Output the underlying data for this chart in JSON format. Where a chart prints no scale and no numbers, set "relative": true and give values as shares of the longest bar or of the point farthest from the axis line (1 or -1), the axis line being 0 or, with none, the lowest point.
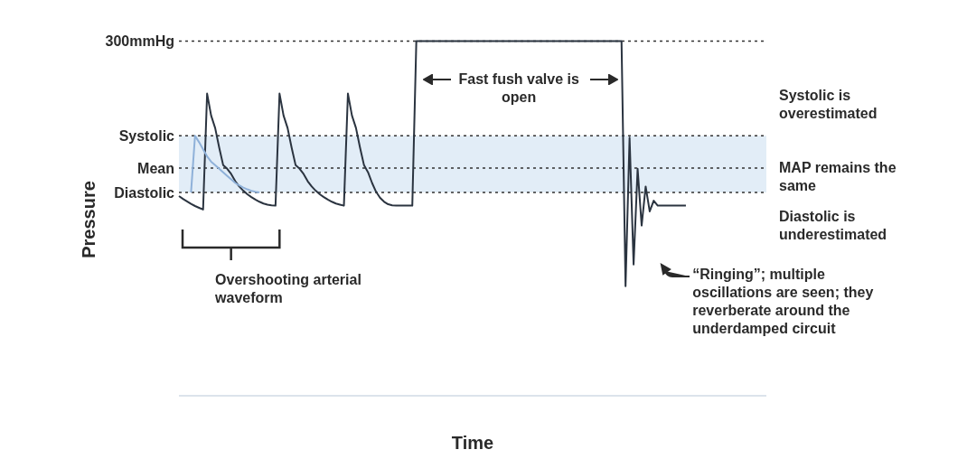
{
  "chart_data": {
    "type": "line",
    "relative": true,
    "xlabel": "Time",
    "ylabel": "Pressure",
    "marker": "none",
    "line_style": "solid",
    "grid": false,
    "legend": false,
    "categories": [
      null,
      null,
      null,
      null,
      null,
      null,
      null,
      null,
      null,
      null,
      null,
      null,
      null,
      null,
      null,
      null,
      null,
      null,
      null,
      null,
      null,
      null,
      null,
      null,
      null,
      null,
      null,
      null,
      null,
      null,
      null,
      null,
      null,
      null,
      null,
      null,
      null,
      null,
      null,
      null,
      null,
      null,
      null,
      null,
      null,
      null,
      null,
      null,
      null,
      null,
      null,
      null,
      null,
      null,
      null,
      null,
      null,
      null,
      null,
      null,
      null,
      null,
      null,
      null,
      null,
      null,
      null,
      null,
      null,
      null,
      null,
      null,
      null,
      null,
      null,
      null,
      null,
      null,
      null,
      null,
      null,
      null,
      null,
      null,
      null,
      null,
      null,
      null,
      null,
      null,
      null,
      null,
      null,
      null,
      null,
      null,
      null,
      null,
      null,
      null,
      null,
      null,
      null,
      null,
      null,
      null,
      null,
      null,
      null,
      null,
      null,
      null,
      null,
      null,
      null,
      null,
      null,
      null,
      null,
      null,
      null,
      null,
      null,
      null,
      null,
      null,
      null,
      null,
      null,
      null,
      null,
      null,
      null,
      null,
      null,
      null,
      null,
      null,
      null,
      null,
      null,
      null,
      null,
      null,
      null,
      null,
      null
    ],
    "series": [
      {
        "color": "#2b3440",
        "values": [
          0.563,
          0.555,
          0.548,
          0.541,
          0.535,
          0.53,
          0.525,
          0.852,
          0.79,
          0.755,
          0.7,
          0.65,
          0.64,
          0.625,
          0.605,
          0.59,
          0.578,
          0.568,
          0.56,
          0.553,
          0.547,
          0.542,
          0.539,
          0.537,
          0.536,
          0.852,
          0.79,
          0.755,
          0.7,
          0.65,
          0.64,
          0.625,
          0.605,
          0.59,
          0.578,
          0.568,
          0.56,
          0.553,
          0.547,
          0.542,
          0.539,
          0.536,
          0.852,
          0.79,
          0.755,
          0.7,
          0.65,
          0.63,
          0.6,
          0.575,
          0.558,
          0.547,
          0.54,
          0.537,
          0.536,
          0.536,
          0.536,
          0.536,
          0.536,
          1.0,
          1.0,
          1.0,
          1.0,
          1.0,
          1.0,
          1.0,
          1.0,
          1.0,
          1.0,
          1.0,
          1.0,
          1.0,
          1.0,
          1.0,
          1.0,
          1.0,
          1.0,
          1.0,
          1.0,
          1.0,
          1.0,
          1.0,
          1.0,
          1.0,
          1.0,
          1.0,
          1.0,
          1.0,
          1.0,
          1.0,
          1.0,
          1.0,
          1.0,
          1.0,
          1.0,
          1.0,
          1.0,
          1.0,
          1.0,
          1.0,
          1.0,
          1.0,
          1.0,
          1.0,
          1.0,
          1.0,
          1.0,
          1.0,
          1.0,
          1.0,
          1.0,
          0.309,
          0.728,
          0.37,
          0.64,
          0.48,
          0.59,
          0.52,
          0.55,
          0.536,
          0.536,
          0.536,
          0.536,
          0.536,
          0.536,
          0.536,
          0.536,
          null,
          null,
          null,
          null,
          null,
          null,
          null,
          null,
          null,
          null,
          null,
          null,
          null,
          null,
          null,
          null,
          null,
          null,
          null,
          null
        ]
      },
      {
        "color": "#8fb1d9",
        "values": [
          null,
          null,
          null,
          0.573,
          0.733,
          0.715,
          0.695,
          0.675,
          0.66,
          0.65,
          0.64,
          0.63,
          0.62,
          0.61,
          0.6,
          0.593,
          0.587,
          0.582,
          0.578,
          0.575,
          0.573,
          null,
          null,
          null,
          null,
          null,
          null,
          null,
          null,
          null,
          null,
          null,
          null,
          null,
          null,
          null,
          null,
          null,
          null,
          null,
          null,
          null,
          null,
          null,
          null,
          null,
          null,
          null,
          null,
          null,
          null,
          null,
          null,
          null,
          null,
          null,
          null,
          null,
          null,
          null,
          null,
          null,
          null,
          null,
          null,
          null,
          null,
          null,
          null,
          null,
          null,
          null,
          null,
          null,
          null,
          null,
          null,
          null,
          null,
          null,
          null,
          null,
          null,
          null,
          null,
          null,
          null,
          null,
          null,
          null,
          null,
          null,
          null,
          null,
          null,
          null,
          null,
          null,
          null,
          null,
          null,
          null,
          null,
          null,
          null,
          null,
          null,
          null,
          null,
          null,
          null,
          null,
          null,
          null,
          null,
          null,
          null,
          null,
          null,
          null,
          null,
          null,
          null,
          null,
          null,
          null,
          null,
          null,
          null,
          null,
          null,
          null,
          null,
          null,
          null,
          null,
          null,
          null,
          null,
          null,
          null,
          null,
          null,
          null,
          null,
          null,
          null
        ]
      }
    ],
    "bands": [
      {
        "axis": "y",
        "from": 0.573,
        "to": 0.733,
        "color": "#d6e6f4"
      }
    ],
    "ref_lines": [
      {
        "axis": "y",
        "value": 1.0,
        "label": "300mmHg",
        "line_style": "dotted"
      },
      {
        "axis": "y",
        "value": 0.733,
        "label": "Systolic",
        "line_style": "dotted"
      },
      {
        "axis": "y",
        "value": 0.642,
        "label": "Mean",
        "line_style": "dotted"
      },
      {
        "axis": "y",
        "value": 0.573,
        "label": "Diastolic",
        "line_style": "dotted"
      }
    ],
    "annotations": [
      "Fast fush valve is open",
      "Overshooting arterial waveform",
      "Systolic is overestimated",
      "MAP remains the same",
      "Diastolic is underestimated",
      "“Ringing”; multiple oscillations are seen; they reverberate around the underdamped circuit"
    ]
  }
}
